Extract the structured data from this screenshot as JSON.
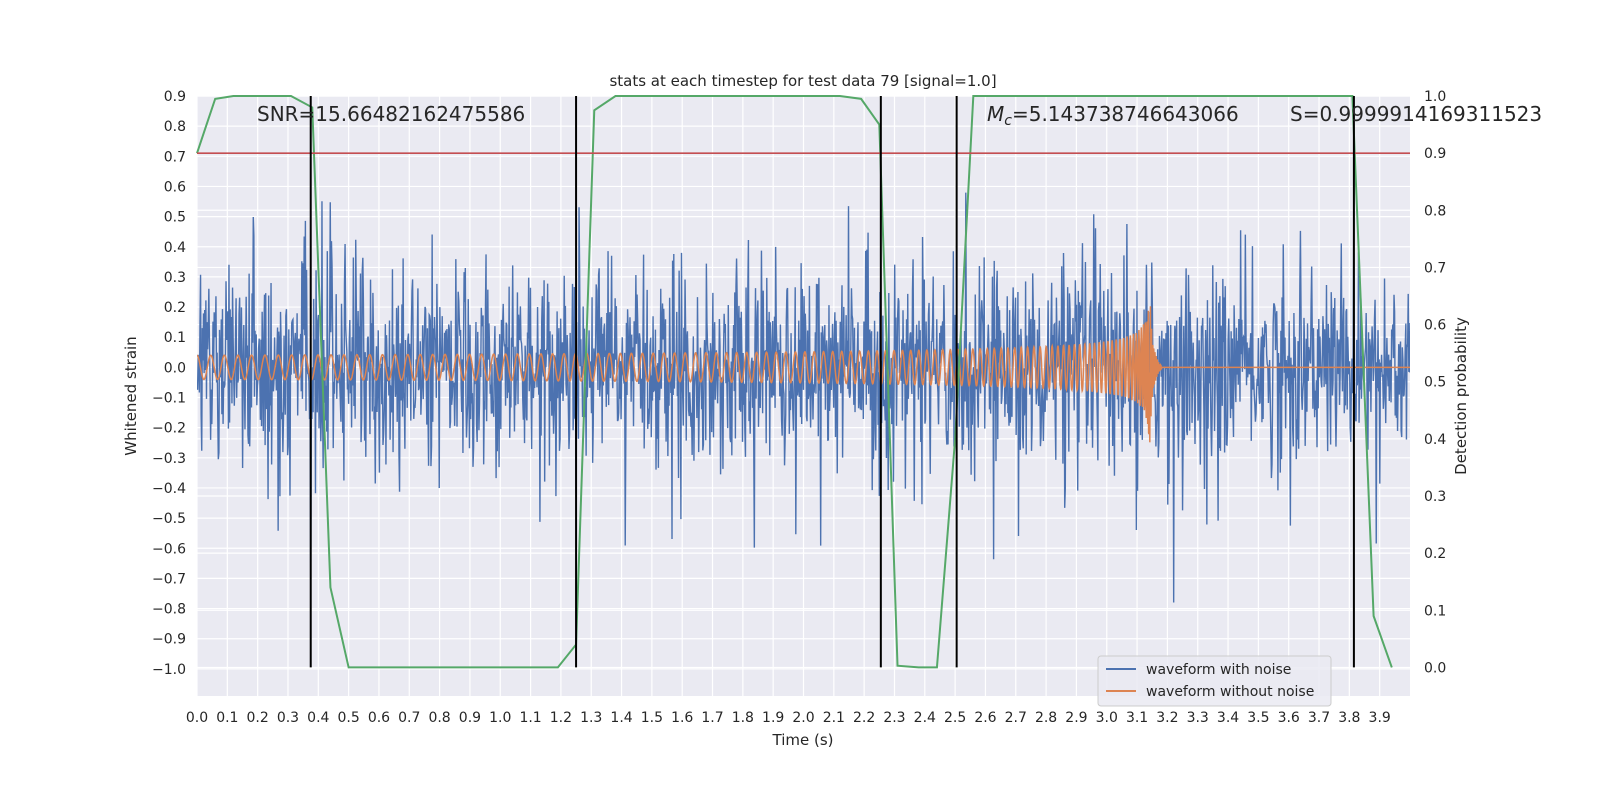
{
  "chart_data": {
    "type": "line",
    "title": "stats at each timestep for test data 79 [signal=1.0]",
    "xlabel": "Time (s)",
    "ylabel_left": "Whitened strain",
    "ylabel_right": "Detection probability",
    "xlim": [
      0.0,
      4.0
    ],
    "ylim_left": [
      -1.09,
      0.9
    ],
    "ylim_right": [
      -0.05,
      1.0
    ],
    "x_ticks": [
      "0.0",
      "0.1",
      "0.2",
      "0.3",
      "0.4",
      "0.5",
      "0.6",
      "0.7",
      "0.8",
      "0.9",
      "1.0",
      "1.1",
      "1.2",
      "1.3",
      "1.4",
      "1.5",
      "1.6",
      "1.7",
      "1.8",
      "1.9",
      "2.0",
      "2.1",
      "2.2",
      "2.3",
      "2.4",
      "2.5",
      "2.6",
      "2.7",
      "2.8",
      "2.9",
      "3.0",
      "3.1",
      "3.2",
      "3.3",
      "3.4",
      "3.5",
      "3.6",
      "3.7",
      "3.8",
      "3.9"
    ],
    "y_ticks_left": [
      "0.9",
      "0.8",
      "0.7",
      "0.6",
      "0.5",
      "0.4",
      "0.3",
      "0.2",
      "0.1",
      "0.0",
      "−0.1",
      "−0.2",
      "−0.3",
      "−0.4",
      "−0.5",
      "−0.6",
      "−0.7",
      "−0.8",
      "−0.9",
      "−1.0"
    ],
    "y_ticks_right": [
      "1.0",
      "0.9",
      "0.8",
      "0.7",
      "0.6",
      "0.5",
      "0.4",
      "0.3",
      "0.2",
      "0.1",
      "0.0"
    ],
    "grid": true,
    "legend_position": "lower-right",
    "series": [
      {
        "name": "waveform with noise",
        "axis": "left",
        "color": "#4c72b0",
        "kind": "noisy",
        "sample_rate": 512,
        "seed": 79
      },
      {
        "name": "waveform without noise",
        "axis": "left",
        "color": "#dd8452",
        "kind": "chirp",
        "amp_start": 0.04,
        "amp_peak": 0.3,
        "f_start": 22,
        "merger_time": 3.14,
        "ringdown_end": 3.18
      },
      {
        "axis": "right",
        "color": "#55a868",
        "kind": "probability",
        "x": [
          0.0,
          0.06,
          0.12,
          0.19,
          0.25,
          0.31,
          0.38,
          0.44,
          0.5,
          0.56,
          0.62,
          0.69,
          0.75,
          0.81,
          0.88,
          0.94,
          1.0,
          1.06,
          1.12,
          1.19,
          1.25,
          1.31,
          1.38,
          1.44,
          1.5,
          1.56,
          1.62,
          1.69,
          1.75,
          1.81,
          1.88,
          1.94,
          2.0,
          2.06,
          2.12,
          2.19,
          2.25,
          2.31,
          2.38,
          2.44,
          2.5,
          2.56,
          2.62,
          2.69,
          2.75,
          2.81,
          2.88,
          2.94,
          3.0,
          3.06,
          3.12,
          3.19,
          3.25,
          3.31,
          3.38,
          3.44,
          3.5,
          3.56,
          3.62,
          3.69,
          3.75,
          3.81,
          3.88,
          3.94
        ],
        "y": [
          0.9,
          0.995,
          1.0,
          1.0,
          1.0,
          1.0,
          0.98,
          0.14,
          0.0,
          0.0,
          0.0,
          0.0,
          0.0,
          0.0,
          0.0,
          0.0,
          0.0,
          0.0,
          0.0,
          0.0,
          0.04,
          0.975,
          1.0,
          1.0,
          1.0,
          1.0,
          1.0,
          1.0,
          1.0,
          1.0,
          1.0,
          1.0,
          1.0,
          1.0,
          1.0,
          0.995,
          0.95,
          0.003,
          0.0,
          0.0,
          0.4,
          1.0,
          1.0,
          1.0,
          1.0,
          1.0,
          1.0,
          1.0,
          1.0,
          1.0,
          1.0,
          1.0,
          1.0,
          1.0,
          1.0,
          1.0,
          1.0,
          1.0,
          1.0,
          1.0,
          1.0,
          1.0,
          0.09,
          0.0
        ]
      },
      {
        "axis": "right",
        "color": "#c44e52",
        "kind": "threshold",
        "value": 0.9
      }
    ],
    "vertical_markers": [
      0.375,
      1.25,
      2.255,
      2.505,
      3.815
    ],
    "annotations": {
      "snr": "SNR=15.66482162475586",
      "mc_symbol": "M",
      "mc_sub": "c",
      "mc_value": "=5.143738746643066",
      "s": "S=0.9999914169311523"
    }
  }
}
